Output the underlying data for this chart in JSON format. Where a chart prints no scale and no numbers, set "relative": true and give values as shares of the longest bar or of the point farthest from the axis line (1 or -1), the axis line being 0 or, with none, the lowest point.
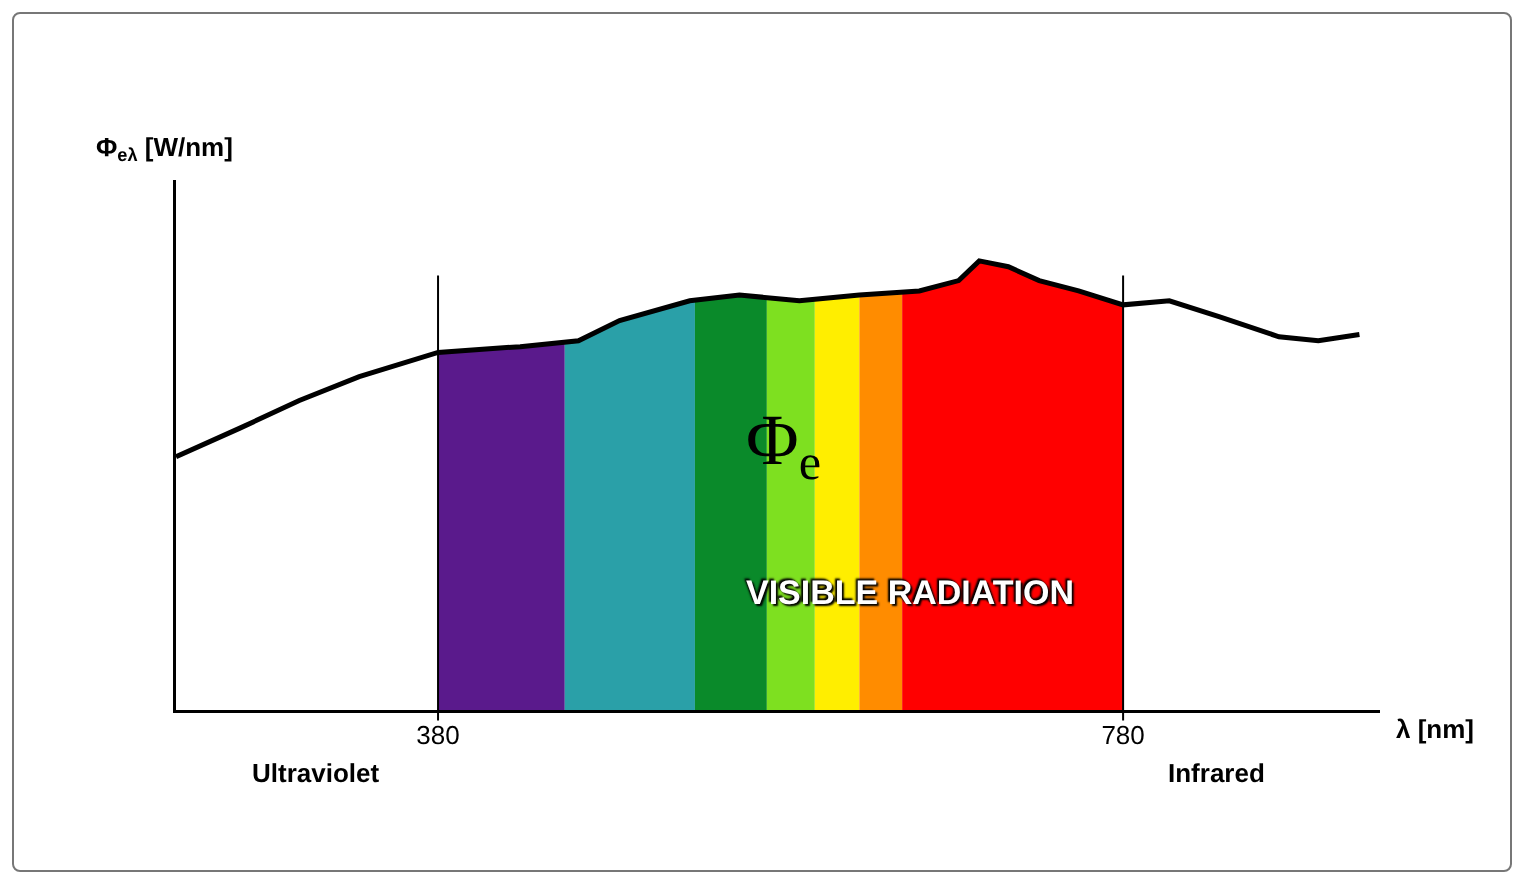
{
  "chart_data": {
    "type": "line",
    "relative": true,
    "xlabel": "λ [nm]",
    "ylabel": "Φ$_{eλ}$ [W/nm]",
    "x": [
      227,
      264,
      299,
      334,
      380,
      428,
      462,
      486,
      527,
      556,
      591,
      626,
      661,
      684,
      696,
      713,
      731,
      754,
      780,
      807,
      836,
      871,
      894,
      918
    ],
    "series": [
      {
        "color": "#000000",
        "values": [
          0.564,
          0.627,
          0.689,
          0.742,
          0.796,
          0.809,
          0.822,
          0.867,
          0.911,
          0.924,
          0.911,
          0.924,
          0.933,
          0.956,
          1.0,
          0.987,
          0.956,
          0.933,
          0.902,
          0.911,
          0.876,
          0.831,
          0.822,
          0.836
        ]
      }
    ],
    "xlim": [
      227,
      930
    ],
    "xticks": [
      380,
      780
    ],
    "ref_lines": [
      {
        "axis": "x",
        "value": 380,
        "color": "#000000"
      },
      {
        "axis": "x",
        "value": 780,
        "color": "#000000"
      }
    ],
    "bands": [
      {
        "axis": "x",
        "from": 380,
        "to": 454,
        "color": "#5a1a8c"
      },
      {
        "axis": "x",
        "from": 454,
        "to": 530,
        "color": "#2aa0a8"
      },
      {
        "axis": "x",
        "from": 530,
        "to": 572,
        "color": "#0a8a2a"
      },
      {
        "axis": "x",
        "from": 572,
        "to": 600,
        "color": "#7ee020"
      },
      {
        "axis": "x",
        "from": 600,
        "to": 626,
        "color": "#ffee00"
      },
      {
        "axis": "x",
        "from": 626,
        "to": 651,
        "color": "#ff8c00"
      },
      {
        "axis": "x",
        "from": 651,
        "to": 780,
        "color": "#ff0000"
      }
    ],
    "annotations": [
      "Φ$_{e}$",
      "VISIBLE RADIATION",
      "Ultraviolet",
      "Infrared"
    ],
    "grid": false,
    "marker": "none",
    "line_style": "solid"
  }
}
